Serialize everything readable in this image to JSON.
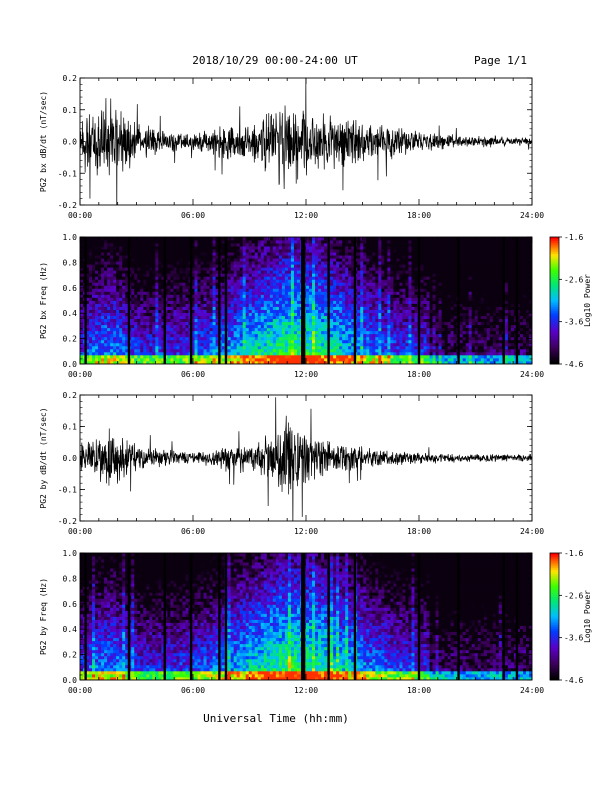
{
  "header": {
    "title": "2018/10/29  00:00-24:00 UT",
    "page": "Page 1/1"
  },
  "xaxis": {
    "label": "Universal Time (hh:mm)",
    "range_hours": [
      0,
      24
    ],
    "ticks": [
      "00:00",
      "06:00",
      "12:00",
      "18:00",
      "24:00"
    ]
  },
  "chart_data": [
    {
      "type": "line",
      "ylabel": "PG2 bx dB/dt (nT/sec)",
      "ylim": [
        -0.2,
        0.2
      ],
      "yticks": [
        "0.2",
        "0.1",
        "0.0",
        "-0.1",
        "-0.2"
      ],
      "envelope": {
        "x_hours": [
          0,
          1,
          1.5,
          2,
          3,
          4,
          5,
          6,
          7,
          8,
          9,
          10,
          11,
          12,
          13,
          14,
          15,
          16,
          17,
          18,
          19,
          20,
          21,
          22,
          23,
          24
        ],
        "amplitude": [
          0.09,
          0.12,
          0.16,
          0.13,
          0.07,
          0.05,
          0.04,
          0.03,
          0.05,
          0.07,
          0.06,
          0.12,
          0.16,
          0.12,
          0.1,
          0.09,
          0.08,
          0.07,
          0.05,
          0.04,
          0.03,
          0.025,
          0.02,
          0.02,
          0.015,
          0.015
        ]
      }
    },
    {
      "type": "heatmap",
      "ylabel": "PG2 bx Freq (Hz)",
      "ylim": [
        0,
        1
      ],
      "yticks": [
        "1.0",
        "0.8",
        "0.6",
        "0.4",
        "0.2",
        "0.0"
      ],
      "colorbar": {
        "label": "Log10 Power",
        "range": [
          -4.6,
          -1.6
        ],
        "ticks": [
          "-1.6",
          "-2.6",
          "-3.6",
          "-4.6"
        ]
      },
      "gaps_hours": [
        0.3,
        2.6,
        4.5,
        5.9,
        7.4,
        7.75,
        11.8,
        11.9,
        13.2,
        14.6,
        18.0,
        20.1,
        22.5,
        23.2
      ]
    },
    {
      "type": "line",
      "ylabel": "PG2 by dB/dt (nT/sec)",
      "ylim": [
        -0.2,
        0.2
      ],
      "yticks": [
        "0.2",
        "0.1",
        "0.0",
        "-0.1",
        "-0.2"
      ],
      "envelope": {
        "x_hours": [
          0,
          1,
          1.5,
          2,
          3,
          4,
          5,
          6,
          7,
          8,
          9,
          10,
          11,
          12,
          13,
          14,
          15,
          16,
          17,
          18,
          19,
          20,
          21,
          22,
          23,
          24
        ],
        "amplitude": [
          0.05,
          0.07,
          0.12,
          0.09,
          0.05,
          0.04,
          0.03,
          0.02,
          0.03,
          0.05,
          0.05,
          0.09,
          0.15,
          0.1,
          0.07,
          0.05,
          0.04,
          0.03,
          0.025,
          0.02,
          0.02,
          0.015,
          0.015,
          0.015,
          0.012,
          0.015
        ]
      }
    },
    {
      "type": "heatmap",
      "ylabel": "PG2 by Freq (Hz)",
      "ylim": [
        0,
        1
      ],
      "yticks": [
        "1.0",
        "0.8",
        "0.6",
        "0.4",
        "0.2",
        "0.0"
      ],
      "colorbar": {
        "label": "Log10 Power",
        "range": [
          -4.6,
          -1.6
        ],
        "ticks": [
          "-1.6",
          "-2.6",
          "-3.6",
          "-4.6"
        ]
      },
      "gaps_hours": [
        0.3,
        2.6,
        4.5,
        5.9,
        7.4,
        7.75,
        11.8,
        11.9,
        13.2,
        14.6,
        18.0,
        20.1,
        22.5,
        23.2
      ]
    }
  ]
}
